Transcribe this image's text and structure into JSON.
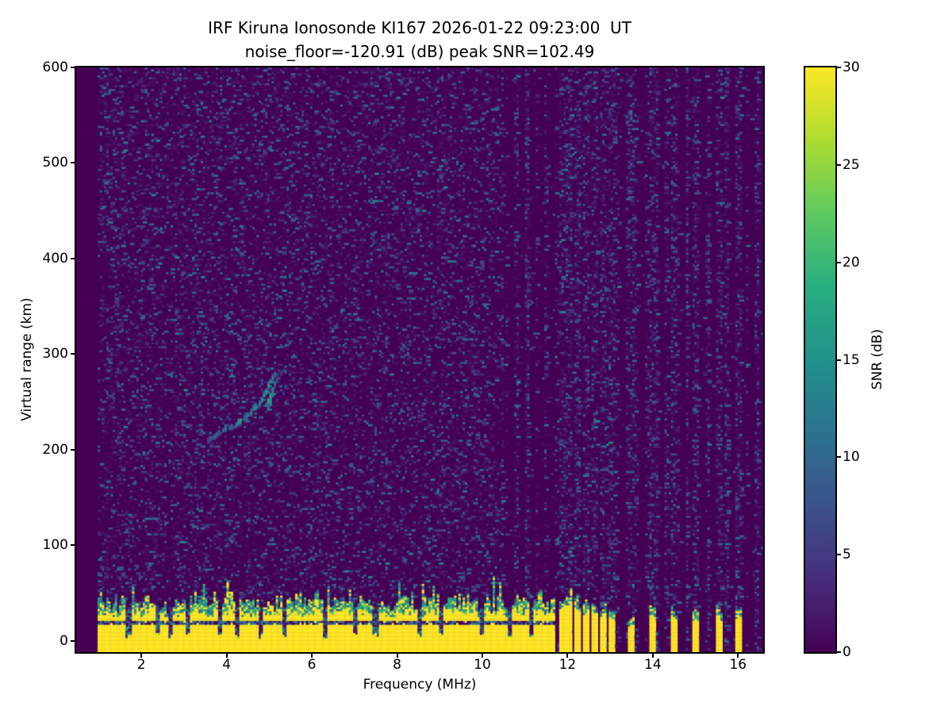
{
  "meta": {
    "station": "IRF Kiruna Ionosonde",
    "station_code": "KI167",
    "datetime_ut": "2026-01-22 09:23:00 UT",
    "noise_floor_db": -120.91,
    "peak_snr_db": 102.49
  },
  "title": {
    "line1": "IRF Kiruna Ionosonde KI167 2026-01-22 09:23:00  UT",
    "line2": "noise_floor=-120.91 (dB) peak SNR=102.49"
  },
  "axes": {
    "xlabel": "Frequency (MHz)",
    "ylabel": "Virtual range (km)",
    "xticks": [
      2,
      4,
      6,
      8,
      10,
      12,
      14,
      16
    ],
    "yticks": [
      0,
      100,
      200,
      300,
      400,
      500,
      600
    ],
    "xlim": [
      0.47,
      16.59
    ],
    "ylim": [
      -12,
      600
    ],
    "grid": false
  },
  "colorbar": {
    "label": "SNR (dB)",
    "ticks": [
      0,
      5,
      10,
      15,
      20,
      25,
      30
    ],
    "min": 0,
    "max": 30,
    "colormap": "viridis",
    "stops": [
      "#440154",
      "#472d7b",
      "#3b528b",
      "#2c728e",
      "#21918c",
      "#28ae80",
      "#5ec962",
      "#addc30",
      "#fde725"
    ]
  },
  "chart_data": {
    "type": "heatmap",
    "x_units": "MHz",
    "y_units": "km",
    "value_units": "dB (SNR), clipped 0-30",
    "grid": {
      "ncols": 320,
      "nrows": 300
    },
    "seed": 1337,
    "blank_below_mhz": 0.95,
    "background_value_db": 0,
    "noise": {
      "uniform_region_max_mhz": 10.5,
      "uniform_density": 0.22,
      "rfi_period_mhz": 0.235,
      "rfi_near_frac": 0.17,
      "rfi_density": 0.34,
      "gap_density": 0.015
    },
    "ground_clutter": {
      "end_mhz": 11.7,
      "yellow_top_km": [
        24,
        34
      ],
      "green_top_extra_km": [
        4,
        20
      ],
      "dark_line_km": [
        17.5,
        20.5
      ],
      "left_plume_max_mhz": 1.15,
      "dip_freqs_mhz": [
        1.7,
        2.4,
        2.7,
        3.1,
        3.85,
        4.25,
        4.8,
        5.35,
        6.3,
        7.0,
        7.5,
        8.55,
        9.05,
        10.0,
        10.63,
        11.15
      ]
    },
    "rfi_bars": [
      {
        "f": 11.87,
        "h": 34
      },
      {
        "f": 12.05,
        "h": 36
      },
      {
        "f": 12.25,
        "h": 32
      },
      {
        "f": 12.45,
        "h": 30
      },
      {
        "f": 12.63,
        "h": 30
      },
      {
        "f": 12.83,
        "h": 28
      },
      {
        "f": 13.03,
        "h": 26
      },
      {
        "f": 13.51,
        "h": 16
      },
      {
        "f": 14.0,
        "h": 22
      },
      {
        "f": 14.52,
        "h": 26
      },
      {
        "f": 15.0,
        "h": 22
      },
      {
        "f": 15.54,
        "h": 24
      },
      {
        "f": 16.02,
        "h": 26
      }
    ],
    "echo_trace": {
      "description": "Ionospheric echo trace rising from ~210 km at 3.55 MHz to ~279 km cusp near 5.1 MHz",
      "points": [
        [
          3.55,
          210,
          8
        ],
        [
          3.62,
          212,
          10
        ],
        [
          3.7,
          214,
          12
        ],
        [
          3.77,
          216,
          11
        ],
        [
          3.84,
          217,
          10
        ],
        [
          3.91,
          219,
          12
        ],
        [
          3.99,
          221,
          13
        ],
        [
          4.06,
          222,
          10
        ],
        [
          4.14,
          224,
          11
        ],
        [
          4.21,
          226,
          13
        ],
        [
          4.29,
          228,
          16
        ],
        [
          4.34,
          230,
          19
        ],
        [
          4.41,
          232,
          13
        ],
        [
          4.49,
          235,
          14
        ],
        [
          4.56,
          238,
          15
        ],
        [
          4.63,
          241,
          14
        ],
        [
          4.7,
          245,
          16
        ],
        [
          4.77,
          249,
          15
        ],
        [
          4.84,
          253,
          17
        ],
        [
          4.89,
          257,
          18
        ],
        [
          4.94,
          261,
          19
        ],
        [
          4.99,
          266,
          18
        ],
        [
          5.04,
          271,
          17
        ],
        [
          5.09,
          275,
          15
        ],
        [
          5.14,
          279,
          11
        ],
        [
          5.0,
          243,
          15
        ],
        [
          5.03,
          248,
          17
        ],
        [
          5.05,
          253,
          18
        ],
        [
          5.07,
          258,
          17
        ],
        [
          5.09,
          263,
          15
        ],
        [
          4.97,
          251,
          20
        ],
        [
          5.01,
          256,
          19
        ],
        [
          5.12,
          268,
          12
        ],
        [
          5.16,
          272,
          9
        ],
        [
          4.92,
          246,
          14
        ]
      ]
    }
  }
}
